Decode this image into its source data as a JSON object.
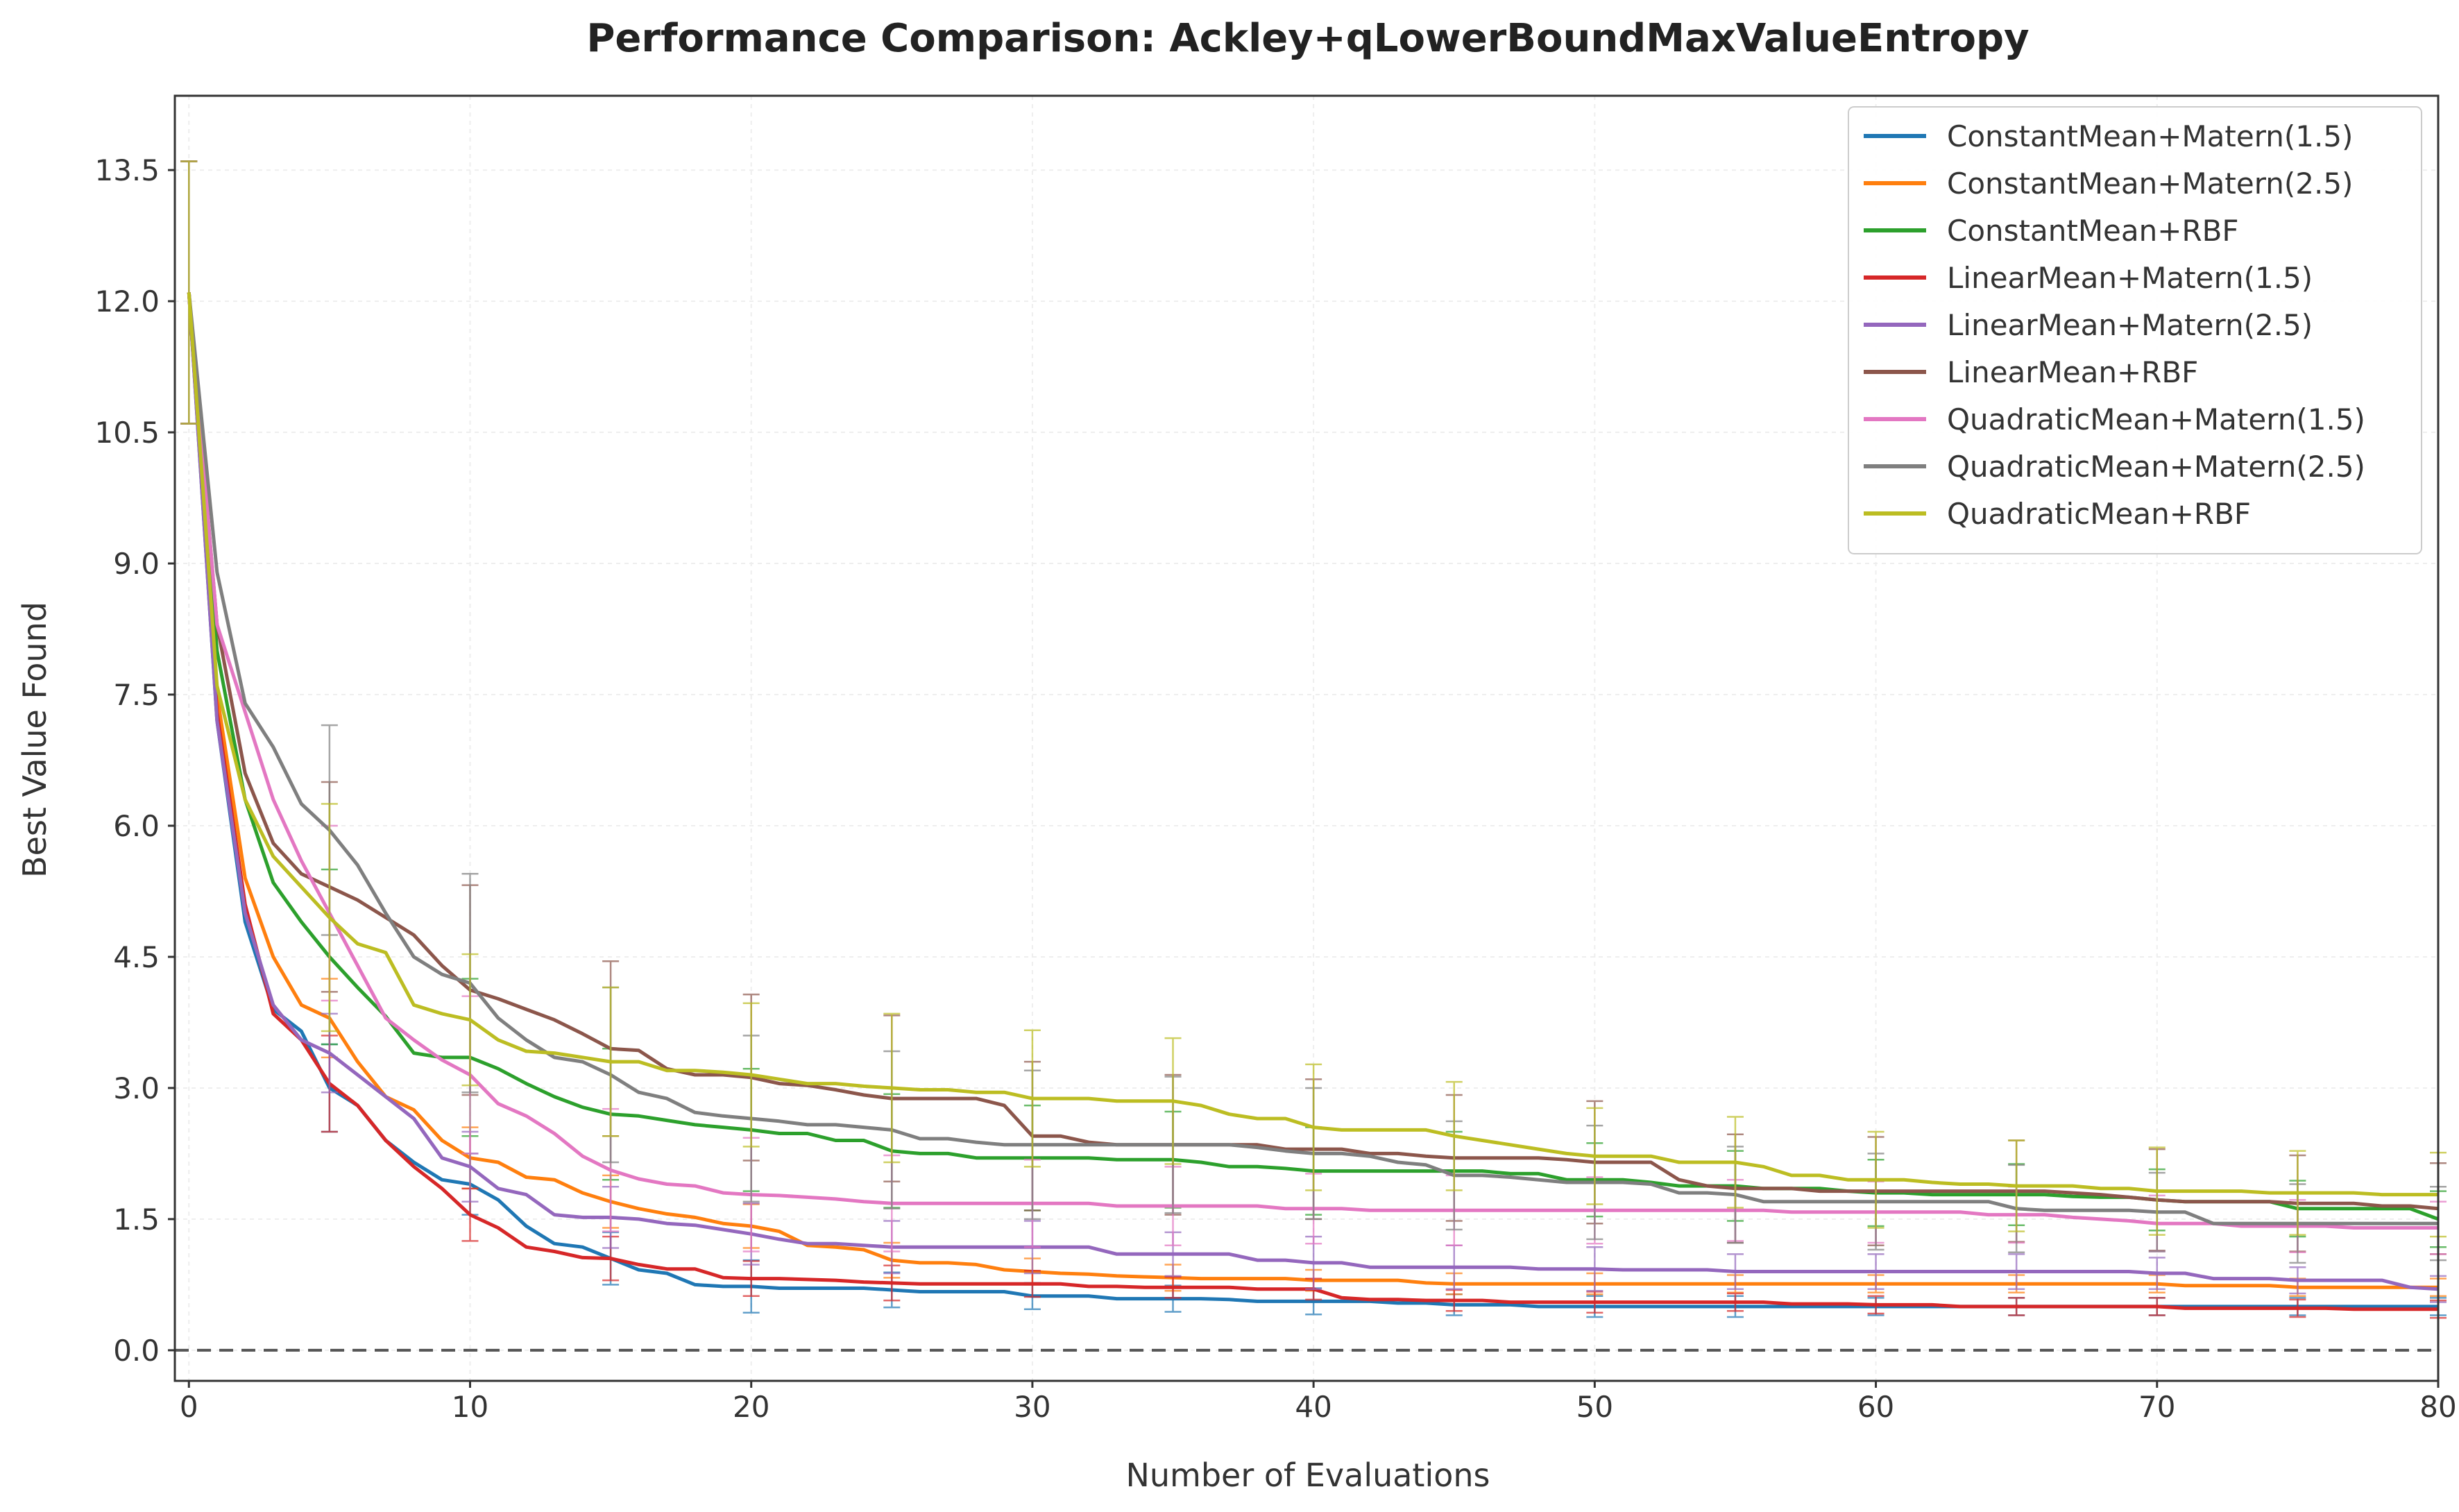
{
  "chart_data": {
    "type": "line",
    "title": "Performance Comparison: Ackley+qLowerBoundMaxValueEntropy",
    "xlabel": "Number of Evaluations",
    "ylabel": "Best Value Found",
    "xlim": [
      -0.5,
      80
    ],
    "ylim": [
      -0.35,
      14.35
    ],
    "xticks": [
      0,
      10,
      20,
      30,
      40,
      50,
      60,
      70,
      80
    ],
    "yticks": [
      0.0,
      1.5,
      3.0,
      4.5,
      6.0,
      7.5,
      9.0,
      10.5,
      12.0,
      13.5
    ],
    "xtick_labels": [
      "0",
      "10",
      "20",
      "30",
      "40",
      "50",
      "60",
      "70",
      "80"
    ],
    "ytick_labels": [
      "0.0",
      "1.5",
      "3.0",
      "4.5",
      "6.0",
      "7.5",
      "9.0",
      "10.5",
      "12.0",
      "13.5"
    ],
    "grid": true,
    "legend_position": "top-right",
    "reference_line": {
      "y": 0.0,
      "style": "dashed",
      "color": "#555555"
    },
    "error_bar_x": [
      0,
      5,
      10,
      15,
      20,
      25,
      30,
      35,
      40,
      45,
      50,
      55,
      60,
      65,
      70,
      75,
      80
    ],
    "x": [
      0,
      1,
      2,
      3,
      4,
      5,
      6,
      7,
      8,
      9,
      10,
      11,
      12,
      13,
      14,
      15,
      16,
      17,
      18,
      19,
      20,
      21,
      22,
      23,
      24,
      25,
      26,
      27,
      28,
      29,
      30,
      31,
      32,
      33,
      34,
      35,
      36,
      37,
      38,
      39,
      40,
      41,
      42,
      43,
      44,
      45,
      46,
      47,
      48,
      49,
      50,
      51,
      52,
      53,
      54,
      55,
      56,
      57,
      58,
      59,
      60,
      61,
      62,
      63,
      64,
      65,
      66,
      67,
      68,
      69,
      70,
      71,
      72,
      73,
      74,
      75,
      76,
      77,
      78,
      79,
      80
    ],
    "series": [
      {
        "name": "ConstantMean+Matern(1.5)",
        "color": "#1f77b4",
        "values": [
          12.1,
          7.2,
          4.9,
          3.9,
          3.65,
          3.0,
          2.8,
          2.4,
          2.15,
          1.95,
          1.9,
          1.72,
          1.42,
          1.22,
          1.18,
          1.05,
          0.92,
          0.88,
          0.75,
          0.73,
          0.73,
          0.71,
          0.71,
          0.71,
          0.71,
          0.69,
          0.67,
          0.67,
          0.67,
          0.67,
          0.62,
          0.62,
          0.62,
          0.59,
          0.59,
          0.59,
          0.59,
          0.58,
          0.56,
          0.56,
          0.56,
          0.56,
          0.56,
          0.54,
          0.54,
          0.52,
          0.52,
          0.52,
          0.5,
          0.5,
          0.5,
          0.5,
          0.5,
          0.5,
          0.5,
          0.5,
          0.5,
          0.5,
          0.5,
          0.5,
          0.5,
          0.5,
          0.5,
          0.5,
          0.5,
          0.5,
          0.5,
          0.5,
          0.5,
          0.5,
          0.5,
          0.5,
          0.5,
          0.5,
          0.5,
          0.5,
          0.5,
          0.5,
          0.5,
          0.5,
          0.5
        ],
        "err": [
          1.5,
          0.5,
          0.35,
          0.3,
          0.3,
          0.2,
          0.15,
          0.15,
          0.15,
          0.12,
          0.12,
          0.12,
          0.1,
          0.1,
          0.1,
          0.1,
          0.1
        ]
      },
      {
        "name": "ConstantMean+Matern(2.5)",
        "color": "#ff7f0e",
        "values": [
          12.1,
          7.5,
          5.4,
          4.5,
          3.95,
          3.8,
          3.3,
          2.9,
          2.75,
          2.4,
          2.2,
          2.15,
          1.98,
          1.95,
          1.8,
          1.7,
          1.62,
          1.56,
          1.52,
          1.45,
          1.42,
          1.36,
          1.2,
          1.18,
          1.15,
          1.03,
          1.0,
          1.0,
          0.98,
          0.92,
          0.9,
          0.88,
          0.87,
          0.85,
          0.84,
          0.83,
          0.82,
          0.82,
          0.82,
          0.82,
          0.8,
          0.8,
          0.8,
          0.8,
          0.77,
          0.76,
          0.76,
          0.76,
          0.76,
          0.76,
          0.76,
          0.76,
          0.76,
          0.76,
          0.76,
          0.76,
          0.76,
          0.76,
          0.76,
          0.76,
          0.76,
          0.76,
          0.76,
          0.76,
          0.76,
          0.76,
          0.76,
          0.76,
          0.76,
          0.76,
          0.76,
          0.74,
          0.74,
          0.74,
          0.74,
          0.72,
          0.72,
          0.72,
          0.72,
          0.72,
          0.72
        ],
        "err": [
          1.5,
          0.45,
          0.35,
          0.3,
          0.25,
          0.2,
          0.15,
          0.15,
          0.12,
          0.12,
          0.12,
          0.1,
          0.1,
          0.1,
          0.1,
          0.1,
          0.1
        ]
      },
      {
        "name": "ConstantMean+RBF",
        "color": "#2ca02c",
        "values": [
          12.1,
          8.0,
          6.3,
          5.35,
          4.9,
          4.5,
          4.15,
          3.82,
          3.4,
          3.35,
          3.35,
          3.22,
          3.05,
          2.9,
          2.78,
          2.7,
          2.68,
          2.63,
          2.58,
          2.55,
          2.52,
          2.48,
          2.48,
          2.4,
          2.4,
          2.28,
          2.25,
          2.25,
          2.2,
          2.2,
          2.2,
          2.2,
          2.2,
          2.18,
          2.18,
          2.18,
          2.15,
          2.1,
          2.1,
          2.08,
          2.05,
          2.05,
          2.05,
          2.05,
          2.05,
          2.05,
          2.05,
          2.02,
          2.02,
          1.95,
          1.95,
          1.95,
          1.92,
          1.88,
          1.88,
          1.88,
          1.85,
          1.85,
          1.85,
          1.82,
          1.8,
          1.8,
          1.78,
          1.78,
          1.78,
          1.78,
          1.78,
          1.76,
          1.75,
          1.75,
          1.72,
          1.7,
          1.7,
          1.7,
          1.7,
          1.62,
          1.62,
          1.62,
          1.62,
          1.62,
          1.5
        ],
        "err": [
          1.5,
          1.0,
          0.9,
          0.75,
          0.7,
          0.65,
          0.6,
          0.55,
          0.5,
          0.45,
          0.42,
          0.4,
          0.38,
          0.35,
          0.35,
          0.32,
          0.32
        ]
      },
      {
        "name": "LinearMean+Matern(1.5)",
        "color": "#d62728",
        "values": [
          12.1,
          7.3,
          5.1,
          3.85,
          3.55,
          3.05,
          2.8,
          2.4,
          2.1,
          1.85,
          1.55,
          1.4,
          1.18,
          1.13,
          1.06,
          1.05,
          0.98,
          0.93,
          0.93,
          0.83,
          0.82,
          0.82,
          0.81,
          0.8,
          0.78,
          0.77,
          0.76,
          0.76,
          0.76,
          0.76,
          0.76,
          0.76,
          0.73,
          0.73,
          0.72,
          0.72,
          0.72,
          0.72,
          0.7,
          0.7,
          0.7,
          0.6,
          0.58,
          0.58,
          0.57,
          0.57,
          0.57,
          0.55,
          0.55,
          0.55,
          0.55,
          0.55,
          0.55,
          0.55,
          0.55,
          0.55,
          0.55,
          0.53,
          0.53,
          0.53,
          0.52,
          0.52,
          0.52,
          0.5,
          0.5,
          0.5,
          0.5,
          0.5,
          0.5,
          0.5,
          0.5,
          0.48,
          0.48,
          0.48,
          0.48,
          0.48,
          0.48,
          0.47,
          0.47,
          0.47,
          0.47
        ],
        "err": [
          1.5,
          0.55,
          0.3,
          0.25,
          0.2,
          0.2,
          0.15,
          0.12,
          0.12,
          0.12,
          0.12,
          0.1,
          0.1,
          0.1,
          0.1,
          0.1,
          0.1
        ]
      },
      {
        "name": "LinearMean+Matern(2.5)",
        "color": "#9467bd",
        "values": [
          12.1,
          7.2,
          5.0,
          3.95,
          3.55,
          3.4,
          3.15,
          2.9,
          2.65,
          2.2,
          2.1,
          1.85,
          1.78,
          1.55,
          1.52,
          1.52,
          1.5,
          1.45,
          1.43,
          1.38,
          1.33,
          1.27,
          1.22,
          1.22,
          1.2,
          1.18,
          1.18,
          1.18,
          1.18,
          1.18,
          1.18,
          1.18,
          1.18,
          1.1,
          1.1,
          1.1,
          1.1,
          1.1,
          1.03,
          1.03,
          1.0,
          1.0,
          0.95,
          0.95,
          0.95,
          0.95,
          0.95,
          0.95,
          0.93,
          0.93,
          0.93,
          0.92,
          0.92,
          0.92,
          0.92,
          0.9,
          0.9,
          0.9,
          0.9,
          0.9,
          0.9,
          0.9,
          0.9,
          0.9,
          0.9,
          0.9,
          0.9,
          0.9,
          0.9,
          0.9,
          0.88,
          0.88,
          0.82,
          0.82,
          0.82,
          0.8,
          0.8,
          0.8,
          0.8,
          0.72,
          0.7
        ],
        "err": [
          1.5,
          0.45,
          0.4,
          0.35,
          0.35,
          0.3,
          0.3,
          0.25,
          0.3,
          0.25,
          0.25,
          0.2,
          0.2,
          0.2,
          0.18,
          0.15,
          0.15
        ]
      },
      {
        "name": "LinearMean+RBF",
        "color": "#8c564b",
        "values": [
          12.1,
          8.3,
          6.6,
          5.8,
          5.45,
          5.3,
          5.15,
          4.95,
          4.75,
          4.4,
          4.12,
          4.02,
          3.9,
          3.78,
          3.62,
          3.45,
          3.43,
          3.22,
          3.15,
          3.15,
          3.12,
          3.05,
          3.03,
          2.98,
          2.92,
          2.88,
          2.88,
          2.88,
          2.88,
          2.8,
          2.45,
          2.45,
          2.38,
          2.35,
          2.35,
          2.35,
          2.35,
          2.35,
          2.35,
          2.3,
          2.3,
          2.3,
          2.25,
          2.25,
          2.22,
          2.2,
          2.2,
          2.2,
          2.2,
          2.18,
          2.15,
          2.15,
          2.15,
          1.95,
          1.88,
          1.85,
          1.85,
          1.85,
          1.82,
          1.82,
          1.82,
          1.82,
          1.82,
          1.82,
          1.82,
          1.82,
          1.82,
          1.8,
          1.78,
          1.75,
          1.72,
          1.7,
          1.7,
          1.7,
          1.7,
          1.68,
          1.68,
          1.68,
          1.65,
          1.65,
          1.62
        ],
        "err": [
          1.5,
          1.2,
          1.2,
          1.0,
          0.95,
          0.95,
          0.85,
          0.8,
          0.8,
          0.72,
          0.7,
          0.62,
          0.62,
          0.58,
          0.58,
          0.55,
          0.52
        ]
      },
      {
        "name": "QuadraticMean+Matern(1.5)",
        "color": "#e377c2",
        "values": [
          12.1,
          8.3,
          7.3,
          6.3,
          5.6,
          5.0,
          4.4,
          3.8,
          3.55,
          3.32,
          3.15,
          2.82,
          2.68,
          2.48,
          2.22,
          2.06,
          1.96,
          1.9,
          1.88,
          1.8,
          1.78,
          1.77,
          1.75,
          1.73,
          1.7,
          1.68,
          1.68,
          1.68,
          1.68,
          1.68,
          1.68,
          1.68,
          1.68,
          1.65,
          1.65,
          1.65,
          1.65,
          1.65,
          1.65,
          1.62,
          1.62,
          1.62,
          1.6,
          1.6,
          1.6,
          1.6,
          1.6,
          1.6,
          1.6,
          1.6,
          1.6,
          1.6,
          1.6,
          1.6,
          1.6,
          1.6,
          1.6,
          1.58,
          1.58,
          1.58,
          1.58,
          1.58,
          1.58,
          1.58,
          1.55,
          1.55,
          1.55,
          1.52,
          1.5,
          1.48,
          1.45,
          1.45,
          1.45,
          1.42,
          1.42,
          1.42,
          1.42,
          1.4,
          1.4,
          1.4,
          1.4
        ],
        "err": [
          1.5,
          1.0,
          0.9,
          0.7,
          0.65,
          0.55,
          0.5,
          0.45,
          0.4,
          0.4,
          0.38,
          0.35,
          0.35,
          0.32,
          0.32,
          0.3,
          0.3
        ]
      },
      {
        "name": "QuadraticMean+Matern(2.5)",
        "color": "#7f7f7f",
        "values": [
          12.1,
          8.9,
          7.4,
          6.9,
          6.25,
          5.95,
          5.55,
          5.0,
          4.5,
          4.3,
          4.2,
          3.8,
          3.55,
          3.35,
          3.3,
          3.15,
          2.95,
          2.88,
          2.72,
          2.68,
          2.65,
          2.62,
          2.58,
          2.58,
          2.55,
          2.52,
          2.42,
          2.42,
          2.38,
          2.35,
          2.35,
          2.35,
          2.35,
          2.35,
          2.35,
          2.35,
          2.35,
          2.35,
          2.32,
          2.28,
          2.25,
          2.25,
          2.22,
          2.15,
          2.12,
          2.0,
          2.0,
          1.98,
          1.95,
          1.92,
          1.92,
          1.92,
          1.9,
          1.8,
          1.8,
          1.78,
          1.7,
          1.7,
          1.7,
          1.7,
          1.7,
          1.7,
          1.7,
          1.7,
          1.7,
          1.62,
          1.6,
          1.6,
          1.6,
          1.6,
          1.58,
          1.58,
          1.45,
          1.45,
          1.45,
          1.45,
          1.45,
          1.45,
          1.45,
          1.45,
          1.45
        ],
        "err": [
          1.5,
          1.2,
          1.25,
          1.0,
          0.95,
          0.9,
          0.85,
          0.78,
          0.75,
          0.62,
          0.65,
          0.55,
          0.55,
          0.5,
          0.45,
          0.45,
          0.42
        ]
      },
      {
        "name": "QuadraticMean+RBF",
        "color": "#bcbd22",
        "values": [
          12.1,
          7.6,
          6.3,
          5.65,
          5.3,
          4.95,
          4.65,
          4.55,
          3.95,
          3.85,
          3.78,
          3.55,
          3.42,
          3.4,
          3.35,
          3.3,
          3.3,
          3.2,
          3.2,
          3.18,
          3.15,
          3.1,
          3.05,
          3.05,
          3.02,
          3.0,
          2.98,
          2.98,
          2.95,
          2.95,
          2.88,
          2.88,
          2.88,
          2.85,
          2.85,
          2.85,
          2.8,
          2.7,
          2.65,
          2.65,
          2.55,
          2.52,
          2.52,
          2.52,
          2.52,
          2.45,
          2.4,
          2.35,
          2.3,
          2.25,
          2.22,
          2.22,
          2.22,
          2.15,
          2.15,
          2.15,
          2.1,
          2.0,
          2.0,
          1.95,
          1.95,
          1.95,
          1.92,
          1.9,
          1.9,
          1.88,
          1.88,
          1.88,
          1.85,
          1.85,
          1.82,
          1.82,
          1.82,
          1.82,
          1.8,
          1.8,
          1.8,
          1.8,
          1.78,
          1.78,
          1.78
        ],
        "err": [
          1.5,
          1.3,
          0.75,
          0.85,
          0.82,
          0.85,
          0.78,
          0.72,
          0.72,
          0.62,
          0.55,
          0.52,
          0.55,
          0.52,
          0.5,
          0.48,
          0.48
        ]
      }
    ]
  }
}
